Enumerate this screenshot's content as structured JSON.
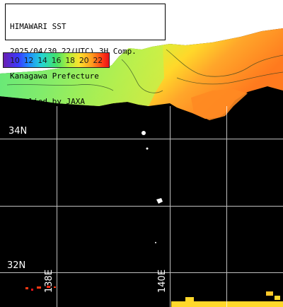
{
  "header": {
    "lines": [
      "HIMAWARI SST",
      "2025/04/30 22(UTC) 3H Comp.",
      "Kanagawa Prefecture",
      "supplied by JAXA"
    ]
  },
  "legend": {
    "labels": [
      "10",
      "12",
      "14",
      "16",
      "18",
      "20",
      "22"
    ]
  },
  "grid": {
    "lat_labels": [
      "34N",
      "32N"
    ],
    "lon_labels": [
      "138E",
      "140E"
    ]
  },
  "colors": {
    "ocean_no_data": "#000000",
    "land": "#ffffff",
    "grid": "#ffffff",
    "sst_cool": "#43e36b",
    "sst_warm": "#ff9a1e"
  }
}
